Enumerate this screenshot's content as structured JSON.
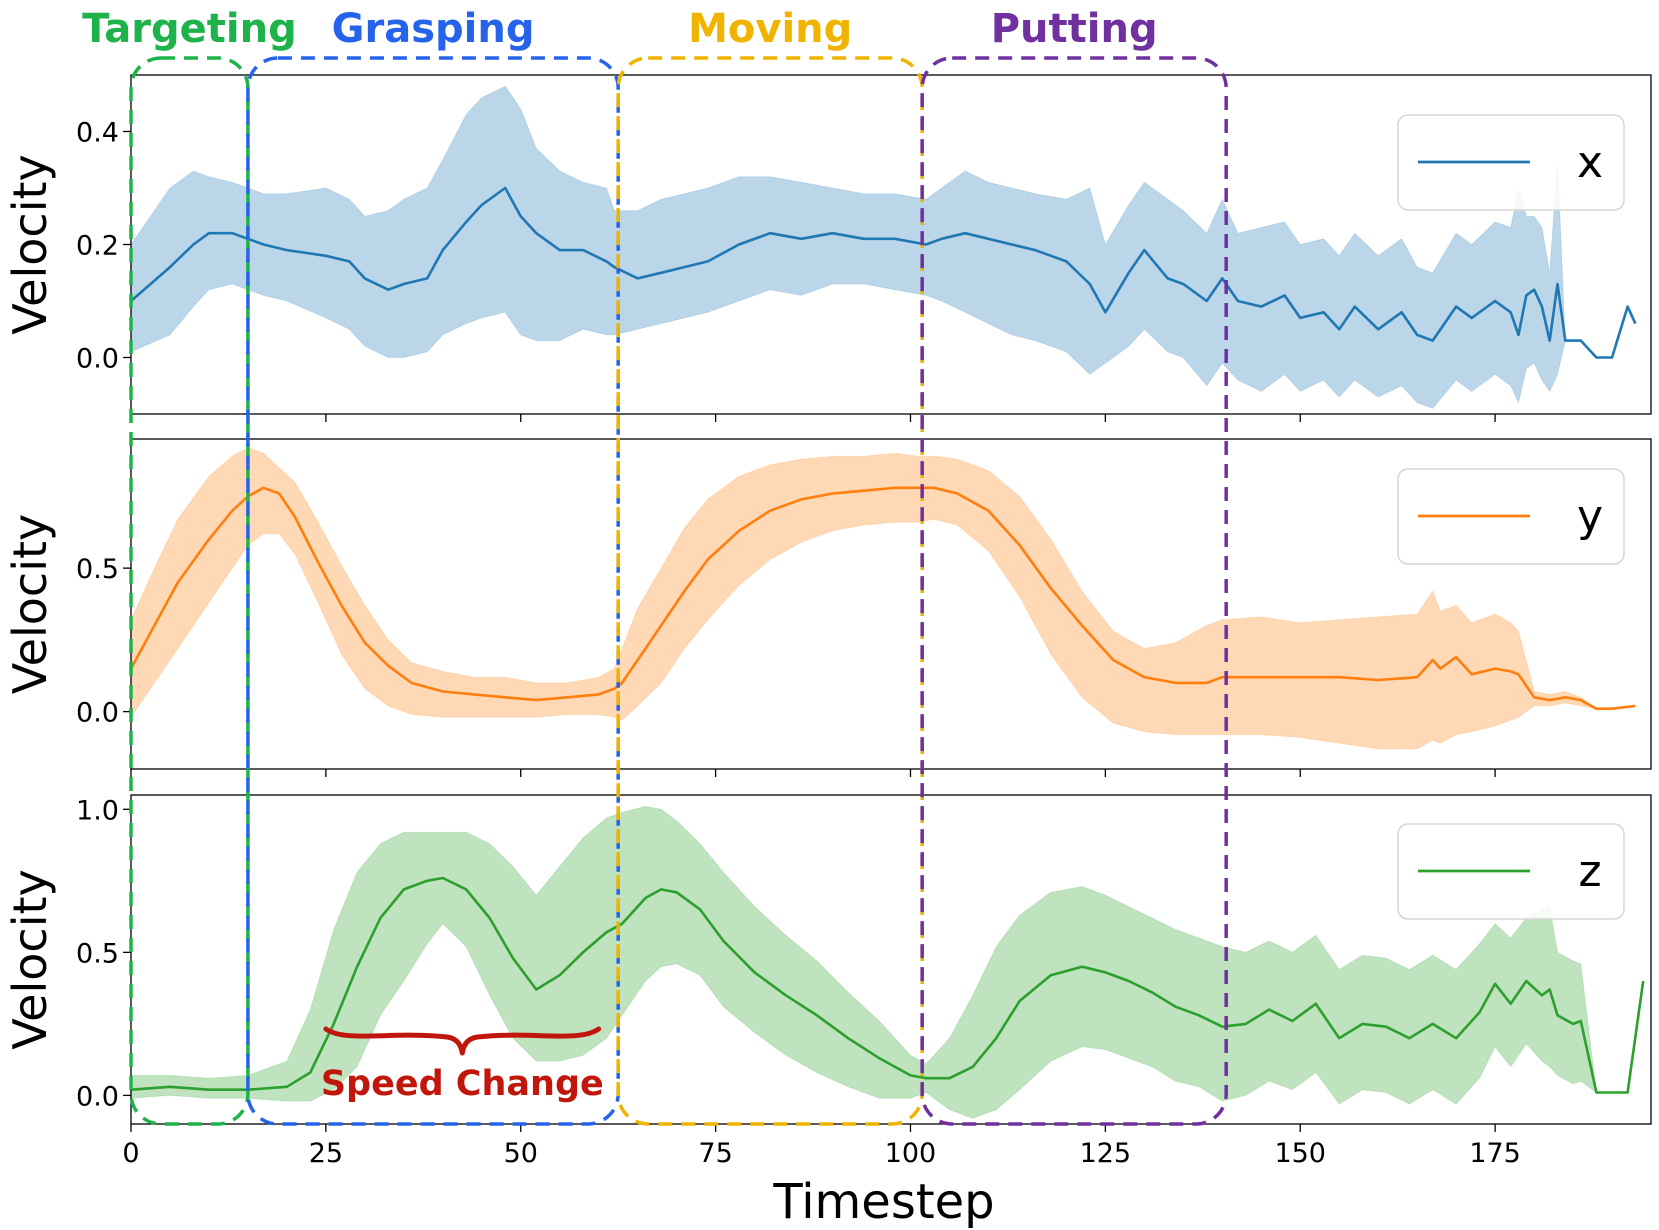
{
  "chart_data": {
    "type": "line",
    "xlabel": "Timestep",
    "ylabel": "Velocity",
    "xlim": [
      0,
      195
    ],
    "xticks": [
      "0",
      "25",
      "50",
      "75",
      "100",
      "125",
      "150",
      "175"
    ],
    "phases": [
      {
        "name": "Targeting",
        "start": 0,
        "end": 15,
        "color": "#1db34a"
      },
      {
        "name": "Grasping",
        "start": 15,
        "end": 62.5,
        "color": "#2563eb"
      },
      {
        "name": "Moving",
        "start": 62.5,
        "end": 101.5,
        "color": "#f0b400"
      },
      {
        "name": "Putting",
        "start": 101.5,
        "end": 140.5,
        "color": "#7030a0"
      }
    ],
    "annotation": {
      "text": "Speed Change",
      "color": "#c0160c",
      "x_from": 25,
      "x_to": 60
    },
    "panels": [
      {
        "series": "x",
        "color": "#1f77b4",
        "ylim": [
          -0.1,
          0.5
        ],
        "yticks": [
          "0.0",
          "0.2",
          "0.4"
        ],
        "x": [
          0,
          5,
          8,
          10,
          13,
          15,
          17,
          20,
          25,
          28,
          30,
          33,
          35,
          38,
          40,
          43,
          45,
          48,
          50,
          52,
          55,
          58,
          61,
          62,
          65,
          68,
          71,
          74,
          78,
          82,
          86,
          90,
          94,
          98,
          102,
          104,
          107,
          110,
          113,
          116,
          120,
          123,
          125,
          128,
          130,
          133,
          135,
          138,
          140,
          142,
          145,
          148,
          150,
          153,
          155,
          157,
          160,
          163,
          165,
          167,
          170,
          172,
          175,
          177,
          178,
          179,
          180,
          181,
          182,
          183,
          184,
          186,
          188,
          190,
          192,
          193
        ],
        "mean": [
          0.1,
          0.16,
          0.2,
          0.22,
          0.22,
          0.21,
          0.2,
          0.19,
          0.18,
          0.17,
          0.14,
          0.12,
          0.13,
          0.14,
          0.19,
          0.24,
          0.27,
          0.3,
          0.25,
          0.22,
          0.19,
          0.19,
          0.17,
          0.16,
          0.14,
          0.15,
          0.16,
          0.17,
          0.2,
          0.22,
          0.21,
          0.22,
          0.21,
          0.21,
          0.2,
          0.21,
          0.22,
          0.21,
          0.2,
          0.19,
          0.17,
          0.13,
          0.08,
          0.15,
          0.19,
          0.14,
          0.13,
          0.1,
          0.14,
          0.1,
          0.09,
          0.11,
          0.07,
          0.08,
          0.05,
          0.09,
          0.05,
          0.08,
          0.04,
          0.03,
          0.09,
          0.07,
          0.1,
          0.08,
          0.04,
          0.11,
          0.12,
          0.09,
          0.03,
          0.13,
          0.03,
          0.03,
          0.0,
          0.0,
          0.09,
          0.06
        ],
        "upper": [
          0.2,
          0.3,
          0.33,
          0.32,
          0.31,
          0.3,
          0.29,
          0.29,
          0.3,
          0.28,
          0.25,
          0.26,
          0.28,
          0.3,
          0.35,
          0.43,
          0.46,
          0.48,
          0.44,
          0.37,
          0.33,
          0.31,
          0.3,
          0.26,
          0.26,
          0.28,
          0.29,
          0.3,
          0.32,
          0.32,
          0.31,
          0.3,
          0.29,
          0.29,
          0.28,
          0.3,
          0.33,
          0.31,
          0.3,
          0.29,
          0.28,
          0.3,
          0.2,
          0.27,
          0.31,
          0.28,
          0.26,
          0.22,
          0.28,
          0.22,
          0.23,
          0.24,
          0.2,
          0.21,
          0.18,
          0.22,
          0.18,
          0.21,
          0.16,
          0.15,
          0.22,
          0.2,
          0.24,
          0.23,
          0.3,
          0.25,
          0.25,
          0.23,
          0.15,
          0.35,
          0.03,
          0.03,
          0.0,
          0.0,
          0.09,
          0.06
        ],
        "lower": [
          0.01,
          0.04,
          0.09,
          0.12,
          0.13,
          0.12,
          0.11,
          0.1,
          0.07,
          0.05,
          0.02,
          0.0,
          0.0,
          0.01,
          0.04,
          0.06,
          0.07,
          0.08,
          0.04,
          0.03,
          0.03,
          0.05,
          0.04,
          0.04,
          0.05,
          0.06,
          0.07,
          0.08,
          0.1,
          0.12,
          0.11,
          0.13,
          0.13,
          0.12,
          0.11,
          0.1,
          0.08,
          0.06,
          0.04,
          0.03,
          0.01,
          -0.03,
          -0.01,
          0.02,
          0.05,
          0.01,
          0.0,
          -0.05,
          -0.01,
          -0.04,
          -0.06,
          -0.03,
          -0.06,
          -0.04,
          -0.07,
          -0.04,
          -0.07,
          -0.05,
          -0.08,
          -0.09,
          -0.04,
          -0.06,
          -0.03,
          -0.05,
          -0.08,
          -0.02,
          -0.01,
          -0.04,
          -0.06,
          -0.03,
          0.03,
          0.03,
          0.0,
          0.0,
          0.09,
          0.06
        ]
      },
      {
        "series": "y",
        "color": "#ff7f0e",
        "ylim": [
          -0.2,
          0.95
        ],
        "yticks": [
          "0.0",
          "0.5"
        ],
        "x": [
          0,
          3,
          6,
          10,
          13,
          15,
          17,
          19,
          21,
          24,
          27,
          30,
          33,
          36,
          40,
          44,
          48,
          52,
          56,
          60,
          62,
          63,
          65,
          68,
          71,
          74,
          78,
          82,
          86,
          90,
          94,
          98,
          101,
          103,
          106,
          110,
          114,
          118,
          122,
          126,
          130,
          134,
          138,
          140,
          145,
          150,
          155,
          160,
          165,
          167,
          168,
          170,
          172,
          175,
          177,
          178,
          180,
          182,
          184,
          186,
          188,
          190,
          193
        ],
        "mean": [
          0.15,
          0.3,
          0.45,
          0.6,
          0.7,
          0.75,
          0.78,
          0.76,
          0.68,
          0.52,
          0.37,
          0.24,
          0.16,
          0.1,
          0.07,
          0.06,
          0.05,
          0.04,
          0.05,
          0.06,
          0.08,
          0.1,
          0.18,
          0.3,
          0.42,
          0.53,
          0.63,
          0.7,
          0.74,
          0.76,
          0.77,
          0.78,
          0.78,
          0.78,
          0.76,
          0.7,
          0.58,
          0.43,
          0.3,
          0.18,
          0.12,
          0.1,
          0.1,
          0.12,
          0.12,
          0.12,
          0.12,
          0.11,
          0.12,
          0.18,
          0.15,
          0.19,
          0.13,
          0.15,
          0.14,
          0.13,
          0.05,
          0.04,
          0.05,
          0.04,
          0.01,
          0.01,
          0.02
        ],
        "upper": [
          0.32,
          0.5,
          0.67,
          0.82,
          0.89,
          0.92,
          0.9,
          0.85,
          0.8,
          0.66,
          0.51,
          0.37,
          0.25,
          0.17,
          0.14,
          0.12,
          0.12,
          0.1,
          0.1,
          0.12,
          0.15,
          0.22,
          0.36,
          0.5,
          0.64,
          0.74,
          0.82,
          0.86,
          0.88,
          0.89,
          0.89,
          0.9,
          0.89,
          0.89,
          0.88,
          0.84,
          0.75,
          0.6,
          0.42,
          0.28,
          0.22,
          0.24,
          0.3,
          0.32,
          0.33,
          0.31,
          0.32,
          0.33,
          0.34,
          0.42,
          0.35,
          0.37,
          0.31,
          0.34,
          0.31,
          0.28,
          0.07,
          0.06,
          0.07,
          0.05,
          0.01,
          0.01,
          0.02
        ],
        "lower": [
          -0.02,
          0.1,
          0.22,
          0.38,
          0.5,
          0.58,
          0.62,
          0.62,
          0.55,
          0.38,
          0.2,
          0.08,
          0.02,
          -0.01,
          -0.02,
          -0.02,
          -0.02,
          -0.02,
          -0.01,
          -0.01,
          -0.02,
          -0.03,
          0.02,
          0.1,
          0.22,
          0.32,
          0.44,
          0.53,
          0.59,
          0.63,
          0.65,
          0.66,
          0.66,
          0.67,
          0.65,
          0.56,
          0.4,
          0.2,
          0.05,
          -0.04,
          -0.07,
          -0.08,
          -0.08,
          -0.08,
          -0.08,
          -0.09,
          -0.11,
          -0.13,
          -0.13,
          -0.1,
          -0.11,
          -0.08,
          -0.07,
          -0.05,
          -0.03,
          -0.02,
          0.02,
          0.02,
          0.03,
          0.02,
          0.01,
          0.01,
          0.02
        ]
      },
      {
        "series": "z",
        "color": "#2ca02c",
        "ylim": [
          -0.1,
          1.05
        ],
        "yticks": [
          "0.0",
          "0.5",
          "1.0"
        ],
        "x": [
          0,
          5,
          10,
          15,
          20,
          23,
          26,
          29,
          32,
          35,
          38,
          40,
          43,
          46,
          49,
          52,
          55,
          58,
          61,
          63,
          66,
          68,
          70,
          73,
          76,
          80,
          84,
          88,
          92,
          96,
          100,
          102,
          105,
          108,
          111,
          114,
          118,
          122,
          125,
          128,
          131,
          134,
          137,
          140,
          143,
          146,
          149,
          152,
          155,
          158,
          161,
          164,
          167,
          170,
          173,
          175,
          177,
          179,
          181,
          182,
          183,
          185,
          186,
          188,
          190,
          192,
          194
        ],
        "mean": [
          0.02,
          0.03,
          0.02,
          0.02,
          0.03,
          0.08,
          0.25,
          0.45,
          0.62,
          0.72,
          0.75,
          0.76,
          0.72,
          0.62,
          0.48,
          0.37,
          0.42,
          0.5,
          0.57,
          0.6,
          0.69,
          0.72,
          0.71,
          0.65,
          0.54,
          0.43,
          0.35,
          0.28,
          0.2,
          0.13,
          0.07,
          0.06,
          0.06,
          0.1,
          0.2,
          0.33,
          0.42,
          0.45,
          0.43,
          0.4,
          0.36,
          0.31,
          0.28,
          0.24,
          0.25,
          0.3,
          0.26,
          0.32,
          0.2,
          0.25,
          0.24,
          0.2,
          0.25,
          0.2,
          0.29,
          0.39,
          0.32,
          0.4,
          0.35,
          0.37,
          0.28,
          0.25,
          0.26,
          0.01,
          0.01,
          0.01,
          0.4
        ],
        "upper": [
          0.07,
          0.07,
          0.06,
          0.07,
          0.12,
          0.3,
          0.58,
          0.78,
          0.88,
          0.92,
          0.92,
          0.92,
          0.92,
          0.88,
          0.8,
          0.7,
          0.8,
          0.9,
          0.97,
          0.99,
          1.01,
          1.0,
          0.96,
          0.88,
          0.78,
          0.66,
          0.56,
          0.47,
          0.36,
          0.26,
          0.14,
          0.11,
          0.2,
          0.35,
          0.52,
          0.63,
          0.71,
          0.73,
          0.7,
          0.66,
          0.62,
          0.58,
          0.55,
          0.52,
          0.5,
          0.54,
          0.5,
          0.56,
          0.44,
          0.49,
          0.48,
          0.44,
          0.49,
          0.44,
          0.53,
          0.6,
          0.55,
          0.62,
          0.65,
          0.66,
          0.5,
          0.47,
          0.46,
          0.01,
          0.01,
          0.01,
          0.4
        ],
        "lower": [
          -0.01,
          0.0,
          -0.01,
          -0.01,
          -0.02,
          -0.02,
          0.02,
          0.1,
          0.28,
          0.4,
          0.53,
          0.6,
          0.52,
          0.35,
          0.2,
          0.12,
          0.12,
          0.14,
          0.2,
          0.28,
          0.4,
          0.45,
          0.46,
          0.42,
          0.31,
          0.22,
          0.14,
          0.08,
          0.03,
          -0.01,
          -0.01,
          0.01,
          -0.05,
          -0.08,
          -0.05,
          0.02,
          0.12,
          0.17,
          0.16,
          0.13,
          0.1,
          0.05,
          0.03,
          -0.02,
          0.0,
          0.05,
          0.02,
          0.08,
          -0.03,
          0.02,
          0.01,
          -0.03,
          0.02,
          -0.03,
          0.06,
          0.17,
          0.1,
          0.18,
          0.12,
          0.1,
          0.07,
          0.04,
          0.05,
          0.01,
          0.01,
          0.01,
          0.4
        ]
      }
    ]
  }
}
